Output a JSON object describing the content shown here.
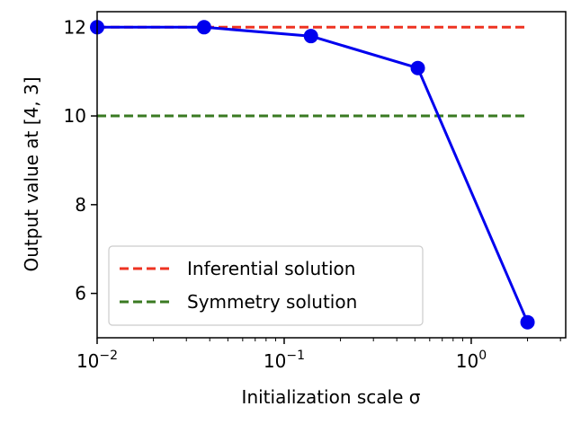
{
  "chart_data": {
    "type": "line",
    "title": "",
    "xlabel": "Initialization scale σ",
    "ylabel": "Output value at [4, 3]",
    "xscale": "log",
    "xlim": [
      0.01,
      3.2
    ],
    "ylim": [
      5.0,
      12.35
    ],
    "grid": false,
    "legend_position": "lower-left",
    "x_ticks": [
      {
        "value": 0.01,
        "base": "10",
        "exp": "−2"
      },
      {
        "value": 0.1,
        "base": "10",
        "exp": "−1"
      },
      {
        "value": 1,
        "base": "10",
        "exp": "0"
      }
    ],
    "y_ticks": [
      6,
      8,
      10,
      12
    ],
    "series": [
      {
        "color": "#0000ee",
        "marker": "circle",
        "x": [
          0.01,
          0.0373,
          0.139,
          0.518,
          2.0
        ],
        "y": [
          12.0,
          12.0,
          11.8,
          11.08,
          5.35
        ]
      }
    ],
    "reference_lines": [
      {
        "name": "Inferential solution",
        "y": 12.0,
        "color": "#ee3322",
        "style": "dashed"
      },
      {
        "name": "Symmetry solution",
        "y": 10.0,
        "color": "#3a7a22",
        "style": "dashed"
      }
    ]
  }
}
